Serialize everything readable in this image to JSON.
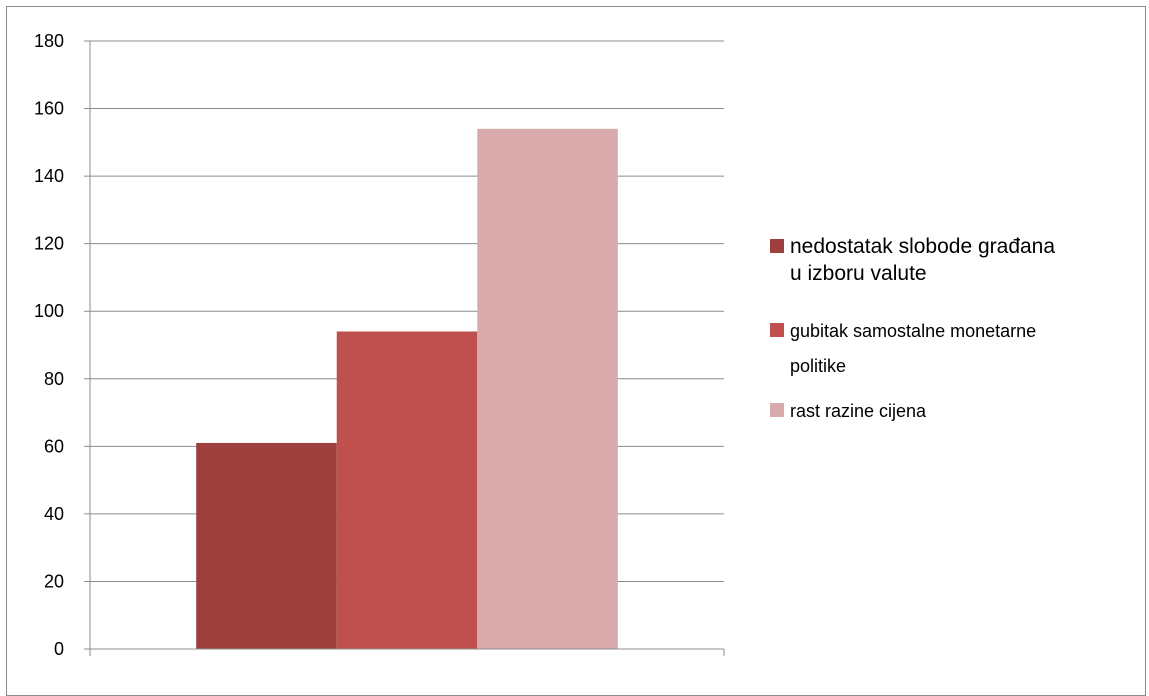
{
  "chart_data": {
    "type": "bar",
    "categories": [
      ""
    ],
    "series": [
      {
        "name": "nedostatak slobode građana u izboru valute",
        "values": [
          61
        ],
        "color": "#9c3f3d"
      },
      {
        "name": "gubitak samostalne monetarne politike",
        "values": [
          94
        ],
        "color": "#c0504d"
      },
      {
        "name": "rast razine cijena",
        "values": [
          154
        ],
        "color": "#d9aaab"
      }
    ],
    "ylim": [
      0,
      180
    ],
    "yticks": [
      0,
      20,
      40,
      60,
      80,
      100,
      120,
      140,
      160,
      180
    ],
    "grid": true,
    "legend_position": "right",
    "title": "",
    "xlabel": "",
    "ylabel": ""
  }
}
